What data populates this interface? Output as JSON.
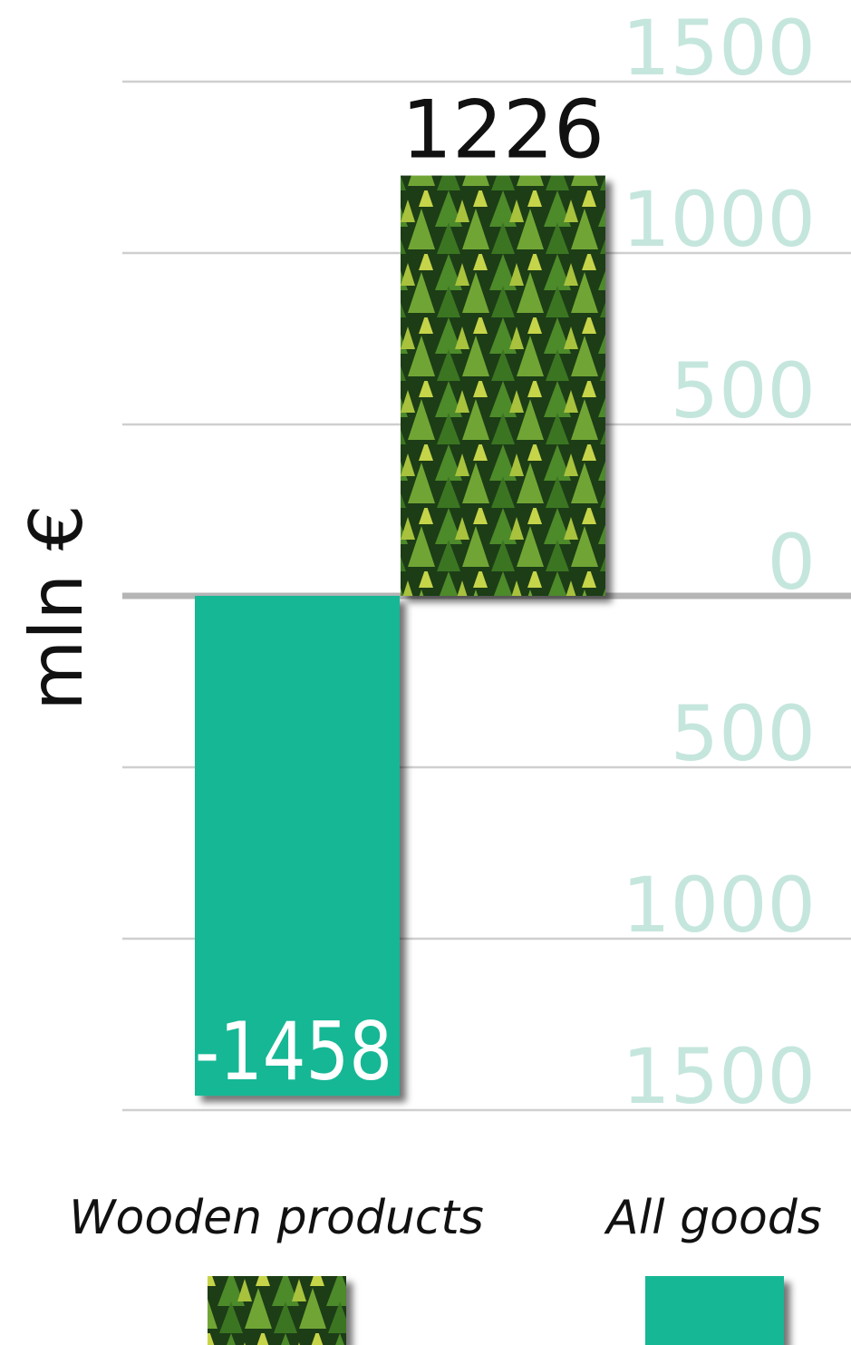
{
  "chart_data": {
    "type": "bar",
    "ylabel": "mln €",
    "series": [
      {
        "name": "Wooden products",
        "color": "#3f7a2a",
        "values": [
          1226
        ]
      },
      {
        "name": "All goods",
        "color": "#14b795",
        "values": [
          -1458
        ]
      }
    ],
    "ylim": [
      -1500,
      1500
    ],
    "yticks": [
      {
        "value": -1500,
        "label": "1500"
      },
      {
        "value": -1000,
        "label": "1000"
      },
      {
        "value": -500,
        "label": "500"
      },
      0,
      500,
      1000,
      1500
    ],
    "grid": true,
    "legend": "bottom"
  }
}
